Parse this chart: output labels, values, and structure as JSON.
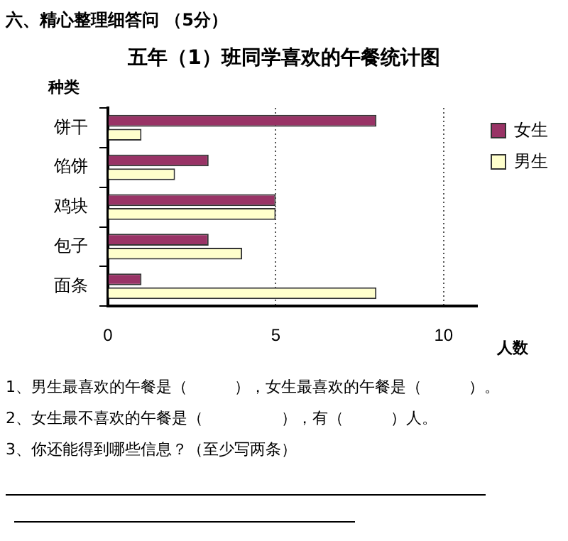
{
  "chart_data": {
    "type": "bar",
    "orientation": "horizontal",
    "title": "五年（1）班同学喜欢的午餐统计图",
    "xlabel": "人数",
    "ylabel": "种类",
    "categories": [
      "饼干",
      "馅饼",
      "鸡块",
      "包子",
      "面条"
    ],
    "series": [
      {
        "name": "女生",
        "color": "#993366",
        "values": [
          8,
          3,
          5,
          3,
          1
        ]
      },
      {
        "name": "男生",
        "color": "#ffffcc",
        "values": [
          1,
          2,
          5,
          4,
          8
        ]
      }
    ],
    "xlim": [
      0,
      11
    ],
    "xticks": [
      0,
      5,
      10
    ],
    "grid": "x",
    "line_style": "dotted",
    "legend": "top right",
    "annotations": [
      "六、精心整理细答问 （5分）",
      "1、男生最喜欢的午餐是（　　　），女生最喜欢的午餐是（　　　）。",
      "2、女生最不喜欢的午餐是（　　　　　），有（　　　）人。",
      "3、你还能得到哪些信息？（至少写两条）"
    ]
  }
}
